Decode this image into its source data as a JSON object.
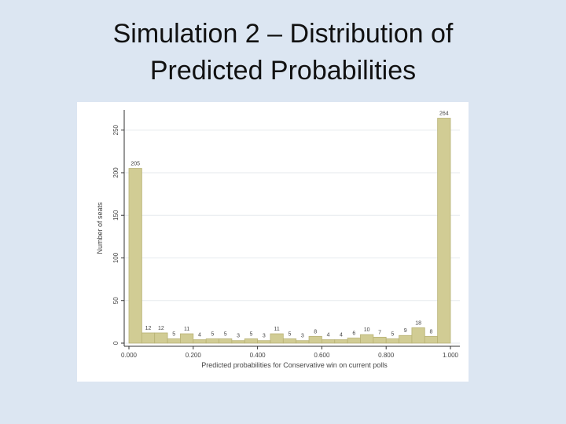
{
  "slide": {
    "title_line1": "Simulation 2 – Distribution of",
    "title_line2": "Predicted Probabilities"
  },
  "chart_data": {
    "type": "bar",
    "title": "",
    "xlabel": "Predicted probabilities for Conservative win on current polls",
    "ylabel": "Number of seats",
    "xlim": [
      0.0,
      1.0
    ],
    "ylim": [
      0,
      270
    ],
    "x_ticks": [
      0.0,
      0.2,
      0.4,
      0.6,
      0.8,
      1.0
    ],
    "x_tick_labels": [
      "0.000",
      "0.200",
      "0.400",
      "0.600",
      "0.800",
      "1.000"
    ],
    "y_ticks": [
      0,
      50,
      100,
      150,
      200,
      250
    ],
    "y_tick_labels": [
      "0",
      "50",
      "100",
      "150",
      "200",
      "250"
    ],
    "bin_width": 0.04,
    "bin_starts": [
      0.0,
      0.04,
      0.08,
      0.12,
      0.16,
      0.2,
      0.24,
      0.28,
      0.32,
      0.36,
      0.4,
      0.44,
      0.48,
      0.52,
      0.56,
      0.6,
      0.64,
      0.68,
      0.72,
      0.76,
      0.8,
      0.84,
      0.88,
      0.92,
      0.96
    ],
    "values": [
      205,
      12,
      12,
      5,
      11,
      4,
      5,
      5,
      3,
      5,
      3,
      11,
      5,
      3,
      8,
      4,
      4,
      6,
      10,
      7,
      5,
      9,
      18,
      8,
      264
    ],
    "data_labels": [
      "205",
      "12",
      "12",
      "5",
      "11",
      "4",
      "5",
      "5",
      "3",
      "5",
      "3",
      "11",
      "5",
      "3",
      "8",
      "4",
      "4",
      "6",
      "10",
      "7",
      "5",
      "9",
      "18",
      "8",
      "264"
    ],
    "grid": "horizontal",
    "legend": "none",
    "colors": {
      "bar_fill": "#d1cc94",
      "bar_stroke": "#b8b275",
      "grid": "#e6eaee",
      "plot_bg": "#ffffff",
      "axis": "#333333",
      "text": "#444444"
    }
  }
}
